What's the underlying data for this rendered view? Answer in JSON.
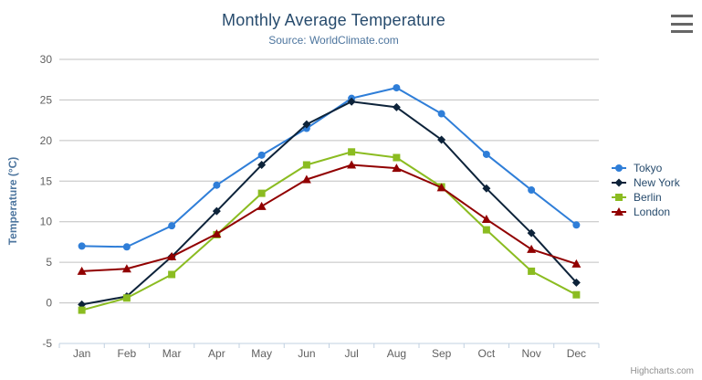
{
  "chart": {
    "title": "Monthly Average Temperature",
    "subtitle": "Source: WorldClimate.com",
    "credits": "Highcharts.com",
    "context_menu_icon": "hamburger-menu-icon"
  },
  "chart_data": {
    "type": "line",
    "title": "Monthly Average Temperature",
    "subtitle": "Source: WorldClimate.com",
    "categories": [
      "Jan",
      "Feb",
      "Mar",
      "Apr",
      "May",
      "Jun",
      "Jul",
      "Aug",
      "Sep",
      "Oct",
      "Nov",
      "Dec"
    ],
    "xlabel": "",
    "ylabel": "Temperature (°C)",
    "ylim": [
      -5,
      30
    ],
    "ytick_step": 5,
    "yticks": [
      -5,
      0,
      5,
      10,
      15,
      20,
      25,
      30
    ],
    "grid": true,
    "legend_position": "right",
    "series": [
      {
        "name": "Tokyo",
        "color": "#2f7ed8",
        "marker": "circle",
        "values": [
          7.0,
          6.9,
          9.5,
          14.5,
          18.2,
          21.5,
          25.2,
          26.5,
          23.3,
          18.3,
          13.9,
          9.6
        ]
      },
      {
        "name": "New York",
        "color": "#0d233a",
        "marker": "diamond",
        "values": [
          -0.2,
          0.8,
          5.7,
          11.3,
          17.0,
          22.0,
          24.8,
          24.1,
          20.1,
          14.1,
          8.6,
          2.5
        ]
      },
      {
        "name": "Berlin",
        "color": "#8bbc21",
        "marker": "square",
        "values": [
          -0.9,
          0.6,
          3.5,
          8.4,
          13.5,
          17.0,
          18.6,
          17.9,
          14.3,
          9.0,
          3.9,
          1.0
        ]
      },
      {
        "name": "London",
        "color": "#910000",
        "marker": "triangle",
        "values": [
          3.9,
          4.2,
          5.7,
          8.5,
          11.9,
          15.2,
          17.0,
          16.6,
          14.2,
          10.3,
          6.6,
          4.8
        ]
      }
    ]
  },
  "colors": {
    "grid_line": "#c0c0c0",
    "axis_line": "#c0d0e0",
    "axis_label": "#606060",
    "title": "#274b6d",
    "subtitle": "#4d759e",
    "axis_title": "#4d759e",
    "legend_text": "#274b6d",
    "credits": "#909090",
    "menu_icon": "#666666"
  }
}
